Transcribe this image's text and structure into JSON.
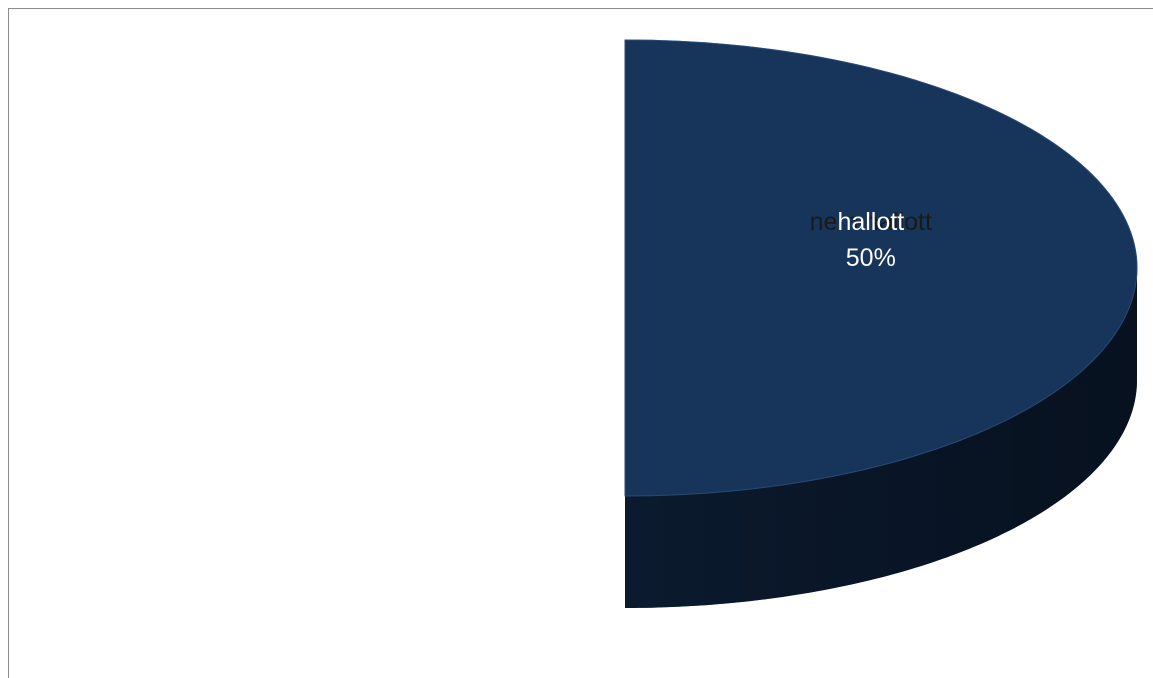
{
  "chart_data": {
    "type": "pie",
    "style": "3d-exploded",
    "title": "",
    "categories": [
      "nem hallott",
      "hallott"
    ],
    "values": [
      50,
      50
    ],
    "data_labels": [
      "50%",
      "50%"
    ],
    "colors": [
      "#8db1df",
      "#17355b"
    ],
    "label_colors": [
      "#1a1a1a",
      "#ffffff"
    ],
    "legend": "none"
  }
}
